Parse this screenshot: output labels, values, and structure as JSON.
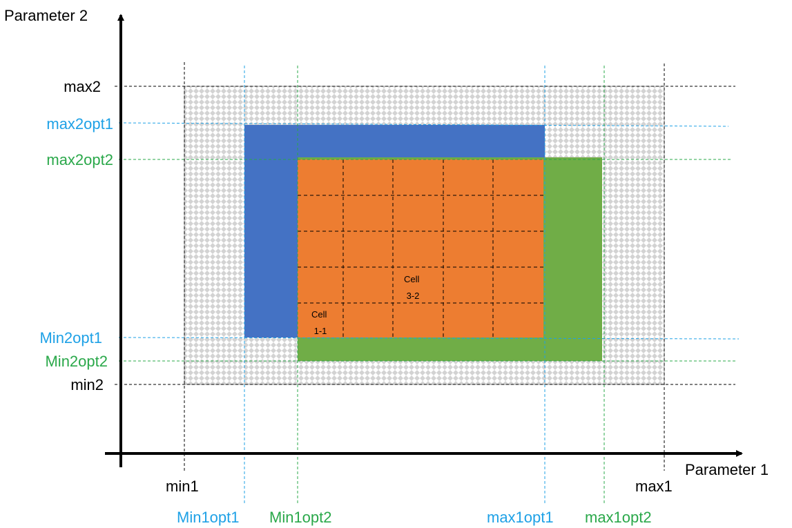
{
  "axes": {
    "x_title": "Parameter 1",
    "y_title": "Parameter 2"
  },
  "colors": {
    "black": "#000000",
    "opt1": "#1ea1e6",
    "opt2": "#2aa84a",
    "blue_region": "#4472c4",
    "orange_region": "#ed7d31",
    "green_region": "#70ad47",
    "checker": "#d9d9d9"
  },
  "y_labels": {
    "max2": "max2",
    "max2opt1": "max2opt1",
    "max2opt2": "max2opt2",
    "min2opt1": "Min2opt1",
    "min2opt2": "Min2opt2",
    "min2": "min2"
  },
  "x_labels": {
    "min1": "min1",
    "max1": "max1",
    "min1opt1": "Min1opt1",
    "min1opt2": "Min1opt2",
    "max1opt1": "max1opt1",
    "max1opt2": "max1opt2"
  },
  "cells": {
    "cell_1_1": [
      "Cell",
      "1-1"
    ],
    "cell_3_2": [
      "Cell",
      "3-2"
    ]
  }
}
